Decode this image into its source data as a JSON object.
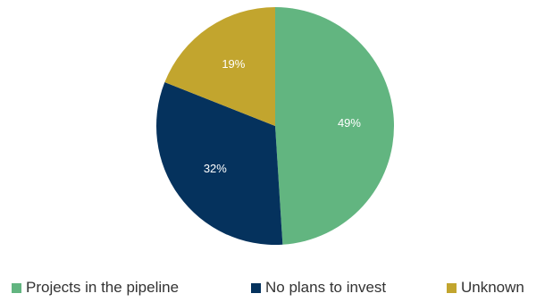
{
  "chart_data": {
    "type": "pie",
    "categories": [
      "Projects in the pipeline",
      "No plans to invest",
      "Unknown"
    ],
    "values": [
      49,
      32,
      19
    ],
    "data_labels": [
      "49%",
      "32%",
      "19%"
    ],
    "colors": [
      "#62b580",
      "#05325d",
      "#c2a52e"
    ],
    "start_angle_deg": 0,
    "direction": "clockwise",
    "legend": "bottom"
  }
}
